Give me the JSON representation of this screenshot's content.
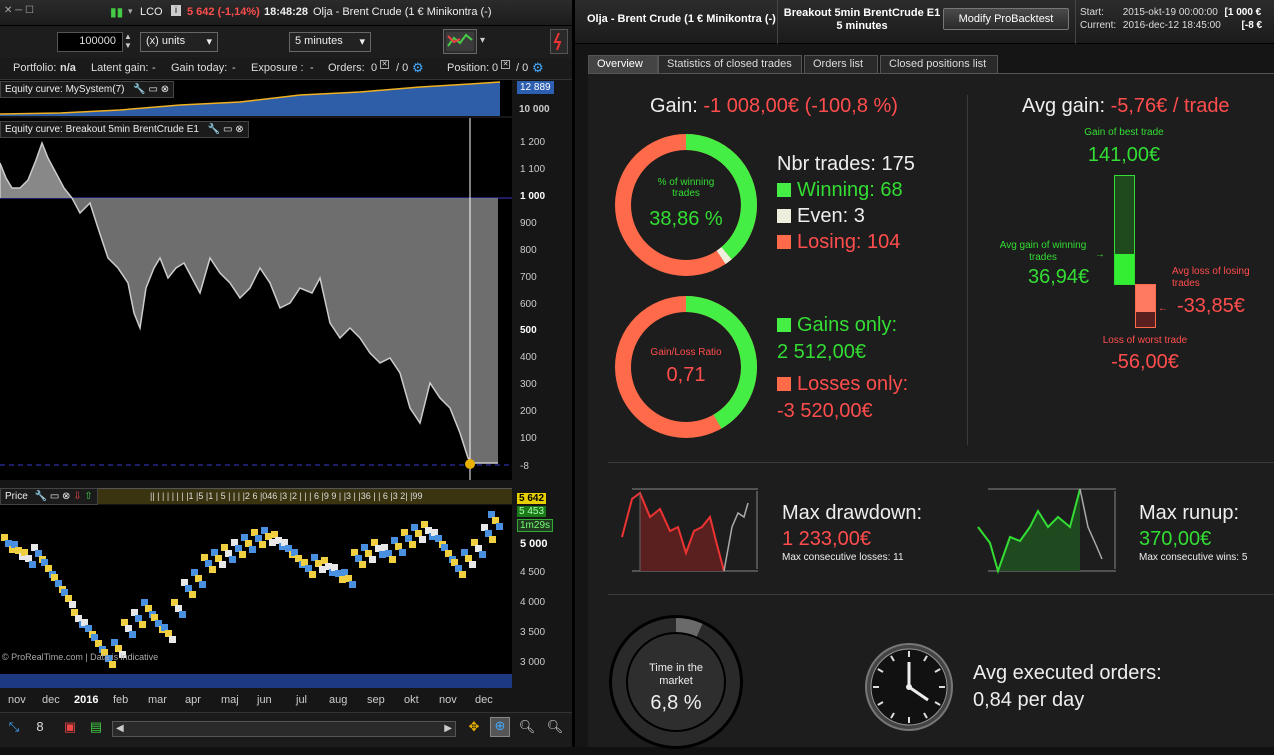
{
  "colors": {
    "accent_red": "#ff4d4d",
    "accent_green": "#33dd33",
    "equity_blue": "#3a66b0"
  },
  "left": {
    "ticker": "LCO",
    "price_change": "5 642 (-1,14%)",
    "time": "18:48:28",
    "instrument": "Olja - Brent Crude (1 € Minikontra (-)",
    "quantity_value": "100000",
    "units_label": "(x) units",
    "timeframe_label": "5 minutes",
    "portfolio_label": "Portfolio:",
    "portfolio_value": "n/a",
    "latent_label": "Latent gain:",
    "latent_value": "-",
    "today_label": "Gain today:",
    "today_value": "-",
    "exposure_label": "Exposure :",
    "exposure_value": "-",
    "orders_label": "Orders:",
    "orders_value_a": "0",
    "orders_value_b": "/ 0",
    "position_label": "Position:",
    "position_value_a": "0",
    "position_value_b": "/ 0",
    "equity_small_title": "Equity curve: MySystem(7)",
    "equity_small_last": "12 889",
    "equity_small_tick": "10 000",
    "equity_title": "Equity curve: Breakout 5min BrentCrude E1",
    "equity_ticks": [
      "1 200",
      "1 100",
      "1 000",
      "900",
      "800",
      "700",
      "600",
      "500",
      "400",
      "300",
      "200",
      "100",
      "-8"
    ],
    "price_title": "Price",
    "price_strip": "|| | | | | | | |1 |5 |1 | 5 | | | |2 6 |046 |3 |2 | | | 6 |9 9 | |3 | |36 | | 6 |3 2| |99",
    "price_last": "5 642",
    "price_second": "5 453",
    "price_timer": "1m29s",
    "price_ticks": [
      "5 000",
      "4 500",
      "4 000",
      "3 500",
      "3 000"
    ],
    "watermark": "© ProRealTime.com | Data is indicative",
    "months": [
      "nov",
      "dec",
      "2016",
      "feb",
      "mar",
      "apr",
      "maj",
      "jun",
      "jul",
      "aug",
      "sep",
      "okt",
      "nov",
      "dec"
    ]
  },
  "right": {
    "instrument": "Olja - Brent Crude (1 € Minikontra (-)",
    "strategy_name": "Breakout 5min BrentCrude E1",
    "strategy_tf": "5 minutes",
    "modify_button": "Modify ProBacktest",
    "start_label": "Start:",
    "start_value": "2015-okt-19 00:00:00",
    "start_extra": "[1 000 €",
    "current_label": "Current:",
    "current_value": "2016-dec-12 18:45:00",
    "current_extra": "[-8 €",
    "tabs": [
      "Overview",
      "Statistics of closed trades",
      "Orders list",
      "Closed positions list"
    ],
    "gain_label": "Gain:",
    "gain_value": "-1 008,00€ (-100,8 %)",
    "win_pct_label": "% of winning trades",
    "win_pct_value": "38,86 %",
    "win_fraction": 0.3886,
    "even_fraction": 0.0171,
    "nbr_trades": "Nbr trades: 175",
    "winning": "Winning: 68",
    "even": "Even: 3",
    "losing": "Losing: 104",
    "gl_label": "Gain/Loss Ratio",
    "gl_value": "0,71",
    "gl_fraction": 0.4165,
    "gains_only_label": "Gains only:",
    "gains_only_value": "2 512,00€",
    "losses_only_label": "Losses only:",
    "losses_only_value": "-3 520,00€",
    "avg_gain_label": "Avg gain:",
    "avg_gain_value": "-5,76€ / trade",
    "best_label": "Gain of best trade",
    "best_value": "141,00€",
    "avg_win_label": "Avg gain of winning trades",
    "avg_win_value": "36,94€",
    "avg_loss_label": "Avg loss of losing trades",
    "avg_loss_value": "-33,85€",
    "worst_label": "Loss of worst trade",
    "worst_value": "-56,00€",
    "dd_label": "Max drawdown:",
    "dd_value": "1 233,00€",
    "dd_sub": "Max consecutive losses: 11",
    "ru_label": "Max runup:",
    "ru_value": "370,00€",
    "ru_sub": "Max consecutive wins: 5",
    "time_label": "Time in the market",
    "time_value": "6,8 %",
    "time_fraction": 0.068,
    "orders_label": "Avg executed orders:",
    "orders_value": "0,84 per day"
  }
}
